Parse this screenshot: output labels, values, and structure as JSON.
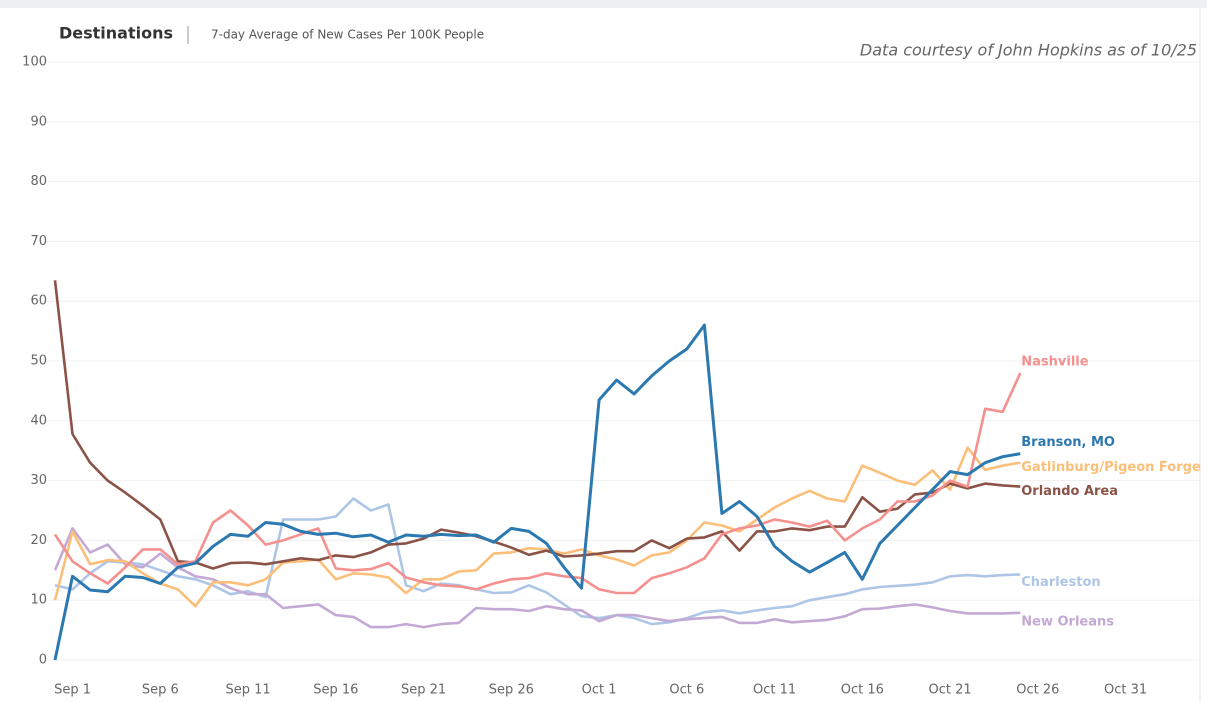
{
  "chart_data": {
    "type": "line",
    "title": "Destinations",
    "subtitle": "7-day Average of New Cases Per 100K People",
    "annotation": "Data courtesy of John Hopkins as of 10/25",
    "categories": [
      "Aug 31",
      "Sep 1",
      "Sep 2",
      "Sep 3",
      "Sep 4",
      "Sep 5",
      "Sep 6",
      "Sep 7",
      "Sep 8",
      "Sep 9",
      "Sep 10",
      "Sep 11",
      "Sep 12",
      "Sep 13",
      "Sep 14",
      "Sep 15",
      "Sep 16",
      "Sep 17",
      "Sep 18",
      "Sep 19",
      "Sep 20",
      "Sep 21",
      "Sep 22",
      "Sep 23",
      "Sep 24",
      "Sep 25",
      "Sep 26",
      "Sep 27",
      "Sep 28",
      "Sep 29",
      "Sep 30",
      "Oct 1",
      "Oct 2",
      "Oct 3",
      "Oct 4",
      "Oct 5",
      "Oct 6",
      "Oct 7",
      "Oct 8",
      "Oct 9",
      "Oct 10",
      "Oct 11",
      "Oct 12",
      "Oct 13",
      "Oct 14",
      "Oct 15",
      "Oct 16",
      "Oct 17",
      "Oct 18",
      "Oct 19",
      "Oct 20",
      "Oct 21",
      "Oct 22",
      "Oct 23",
      "Oct 24",
      "Oct 25",
      "Oct 26",
      "Oct 27",
      "Oct 28",
      "Oct 29",
      "Oct 30",
      "Oct 31"
    ],
    "xticks": [
      "Sep 1",
      "Sep 6",
      "Sep 11",
      "Sep 16",
      "Sep 21",
      "Sep 26",
      "Oct 1",
      "Oct 6",
      "Oct 11",
      "Oct 16",
      "Oct 21",
      "Oct 26",
      "Oct 31"
    ],
    "ylim": [
      0,
      100
    ],
    "yticks": [
      0,
      10,
      20,
      30,
      40,
      50,
      60,
      70,
      80,
      90,
      100
    ],
    "grid": true,
    "series": [
      {
        "name": "Branson, MO",
        "color": "#2c78b0",
        "values": [
          0,
          14,
          11.7,
          11.4,
          14,
          13.8,
          12.8,
          15.5,
          16.2,
          19,
          21,
          20.7,
          23,
          22.7,
          21.5,
          21,
          21.2,
          20.6,
          20.9,
          19.7,
          20.9,
          20.7,
          21,
          20.8,
          20.9,
          19.7,
          22,
          21.5,
          19.5,
          15.5,
          12,
          43.5,
          46.8,
          44.5,
          47.5,
          50,
          52,
          56,
          24.5,
          26.5,
          24,
          19,
          16.5,
          14.7,
          16.3,
          18,
          13.5,
          19.5,
          22.5,
          25.5,
          28.5,
          31.5,
          31,
          33,
          34,
          34.5,
          null,
          null,
          null,
          null,
          null,
          null
        ]
      },
      {
        "name": "Nashville",
        "color": "#f4918f",
        "values": [
          21,
          16.5,
          14.5,
          12.8,
          15.5,
          18.5,
          18.5,
          16,
          16.5,
          23,
          25,
          22.5,
          19.3,
          20,
          21,
          22,
          15.3,
          15,
          15.2,
          16.2,
          13.8,
          13,
          12.5,
          12.3,
          11.8,
          12.8,
          13.5,
          13.7,
          14.5,
          14,
          13.7,
          11.8,
          11.2,
          11.2,
          13.7,
          14.5,
          15.5,
          17,
          21,
          22,
          22.5,
          23.5,
          23,
          22.3,
          23.3,
          20,
          22,
          23.5,
          26.5,
          26.5,
          27.5,
          30,
          29,
          42,
          41.5,
          48,
          null,
          null,
          null,
          null,
          null,
          null
        ]
      },
      {
        "name": "Gatlinburg/Pigeon Forge",
        "color": "#fbbf79",
        "values": [
          10,
          21.5,
          16,
          16.7,
          16.5,
          14.5,
          12.8,
          11.8,
          9,
          13,
          13,
          12.5,
          13.5,
          16.3,
          16.5,
          16.8,
          13.5,
          14.5,
          14.3,
          13.8,
          11.2,
          13.5,
          13.5,
          14.8,
          15,
          17.8,
          18,
          18.7,
          18.5,
          17.8,
          18.5,
          17.5,
          16.8,
          15.8,
          17.5,
          18,
          20,
          23,
          22.5,
          21.5,
          23.5,
          25.5,
          27,
          28.3,
          27,
          26.5,
          32.5,
          31.3,
          30,
          29.3,
          31.7,
          28.5,
          35.5,
          31.8,
          32.5,
          33,
          null,
          null,
          null,
          null,
          null,
          null
        ]
      },
      {
        "name": "Orlando Area",
        "color": "#8b5347",
        "values": [
          63.5,
          37.8,
          33,
          30,
          28,
          25.8,
          23.5,
          16.5,
          16.3,
          15.3,
          16.2,
          16.3,
          16,
          16.5,
          17,
          16.7,
          17.5,
          17.2,
          18,
          19.3,
          19.5,
          20.3,
          21.8,
          21.3,
          20.7,
          19.8,
          18.8,
          17.6,
          18.3,
          17.3,
          17.5,
          17.8,
          18.2,
          18.2,
          20,
          18.7,
          20.3,
          20.5,
          21.5,
          18.3,
          21.5,
          21.5,
          22,
          21.7,
          22.3,
          22.3,
          27.2,
          24.8,
          25.3,
          27.7,
          28,
          29.5,
          28.7,
          29.5,
          29.2,
          29,
          null,
          null,
          null,
          null,
          null,
          null
        ]
      },
      {
        "name": "Charleston",
        "color": "#aec6e6",
        "values": [
          12.5,
          11.8,
          14.5,
          16.5,
          16.3,
          16,
          15,
          14,
          13.5,
          12.5,
          11,
          11.5,
          10.5,
          23.5,
          23.5,
          23.5,
          24,
          27,
          25,
          26,
          12.5,
          11.5,
          12.8,
          12.5,
          11.8,
          11.2,
          11.3,
          12.5,
          11.3,
          9.3,
          7.3,
          7,
          7.5,
          7,
          6,
          6.3,
          7,
          8,
          8.3,
          7.8,
          8.3,
          8.7,
          9,
          10,
          10.5,
          11,
          11.8,
          12.2,
          12.4,
          12.6,
          13,
          14,
          14.2,
          14,
          14.2,
          14.3,
          null,
          null,
          null,
          null,
          null,
          null
        ]
      },
      {
        "name": "New Orleans",
        "color": "#c3a9d4",
        "values": [
          15,
          22,
          18,
          19.3,
          16,
          15.5,
          17.8,
          15.5,
          14,
          13.5,
          12,
          11,
          11,
          8.7,
          9,
          9.3,
          7.5,
          7.2,
          5.5,
          5.5,
          6,
          5.5,
          6,
          6.2,
          8.7,
          8.5,
          8.5,
          8.2,
          9,
          8.5,
          8.3,
          6.5,
          7.5,
          7.5,
          7,
          6.5,
          6.8,
          7,
          7.2,
          6.2,
          6.2,
          6.8,
          6.3,
          6.5,
          6.7,
          7.3,
          8.5,
          8.6,
          9,
          9.3,
          8.8,
          8.2,
          7.8,
          7.8,
          7.8,
          7.9,
          null,
          null,
          null,
          null,
          null,
          null
        ]
      }
    ]
  }
}
